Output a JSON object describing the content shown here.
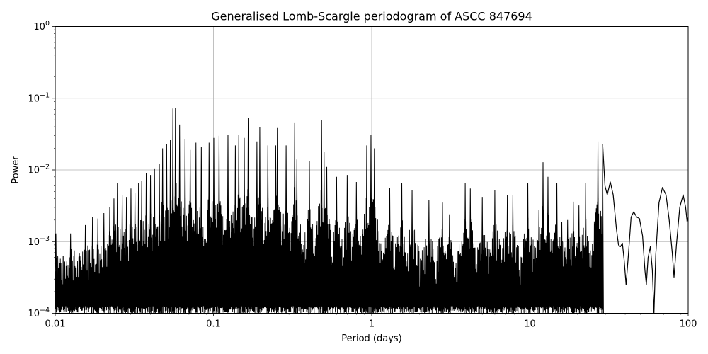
{
  "chart_data": {
    "type": "line",
    "title": "Generalised Lomb-Scargle periodogram of ASCC 847694",
    "xlabel": "Period (days)",
    "ylabel": "Power",
    "xscale": "log",
    "yscale": "log",
    "xlim": [
      0.01,
      100
    ],
    "ylim": [
      0.0001,
      1
    ],
    "grid": true,
    "x_ticks": [
      {
        "value": 0.01,
        "label": "0.01"
      },
      {
        "value": 0.1,
        "label": "0.1"
      },
      {
        "value": 1,
        "label": "1"
      },
      {
        "value": 10,
        "label": "10"
      },
      {
        "value": 100,
        "label": "100"
      }
    ],
    "y_ticks": [
      {
        "value": 0.0001,
        "base": "10",
        "exp": "−4"
      },
      {
        "value": 0.001,
        "base": "10",
        "exp": "−3"
      },
      {
        "value": 0.01,
        "base": "10",
        "exp": "−2"
      },
      {
        "value": 0.1,
        "base": "10",
        "exp": "−1"
      },
      {
        "value": 1,
        "base": "10",
        "exp": "0"
      }
    ],
    "series": [
      {
        "color": "#000000",
        "peaks": [
          [
            0.0101,
            0.0013
          ],
          [
            0.0125,
            0.0013
          ],
          [
            0.0155,
            0.0017
          ],
          [
            0.0172,
            0.0022
          ],
          [
            0.0186,
            0.0021
          ],
          [
            0.0203,
            0.0025
          ],
          [
            0.0221,
            0.003
          ],
          [
            0.0235,
            0.004
          ],
          [
            0.0247,
            0.0065
          ],
          [
            0.0265,
            0.0045
          ],
          [
            0.0282,
            0.0042
          ],
          [
            0.0301,
            0.0055
          ],
          [
            0.0319,
            0.0048
          ],
          [
            0.0336,
            0.0065
          ],
          [
            0.0352,
            0.007
          ],
          [
            0.0376,
            0.009
          ],
          [
            0.04,
            0.0085
          ],
          [
            0.0424,
            0.0105
          ],
          [
            0.0455,
            0.012
          ],
          [
            0.0477,
            0.02
          ],
          [
            0.0506,
            0.023
          ],
          [
            0.0534,
            0.026
          ],
          [
            0.0554,
            0.072
          ],
          [
            0.0575,
            0.074
          ],
          [
            0.0611,
            0.043
          ],
          [
            0.0661,
            0.027
          ],
          [
            0.0713,
            0.019
          ],
          [
            0.0775,
            0.024
          ],
          [
            0.0838,
            0.021
          ],
          [
            0.0938,
            0.024
          ],
          [
            0.1005,
            0.028
          ],
          [
            0.1085,
            0.03
          ],
          [
            0.1235,
            0.031
          ],
          [
            0.1375,
            0.022
          ],
          [
            0.1445,
            0.031
          ],
          [
            0.1565,
            0.028
          ],
          [
            0.1658,
            0.053
          ],
          [
            0.1882,
            0.025
          ],
          [
            0.1962,
            0.04
          ],
          [
            0.2206,
            0.022
          ],
          [
            0.2474,
            0.022
          ],
          [
            0.2533,
            0.0385
          ],
          [
            0.2878,
            0.022
          ],
          [
            0.326,
            0.045
          ],
          [
            0.3365,
            0.014
          ],
          [
            0.4038,
            0.0133
          ],
          [
            0.4822,
            0.05
          ],
          [
            0.5,
            0.018
          ],
          [
            0.52,
            0.011
          ],
          [
            0.6,
            0.008
          ],
          [
            0.7,
            0.0085
          ],
          [
            0.8,
            0.0068
          ],
          [
            0.93,
            0.022
          ],
          [
            0.98,
            0.031
          ],
          [
            1.0,
            0.031
          ],
          [
            1.04,
            0.02
          ],
          [
            1.3,
            0.0056
          ],
          [
            1.55,
            0.0065
          ],
          [
            1.8,
            0.0052
          ],
          [
            2.3,
            0.0038
          ],
          [
            2.8,
            0.0035
          ],
          [
            3.1,
            0.0024
          ],
          [
            3.9,
            0.0065
          ],
          [
            4.2,
            0.0055
          ],
          [
            5.0,
            0.0042
          ],
          [
            6.0,
            0.0052
          ],
          [
            7.2,
            0.0045
          ],
          [
            7.8,
            0.0045
          ],
          [
            9.7,
            0.0065
          ],
          [
            11.4,
            0.0028
          ],
          [
            12.1,
            0.0128
          ],
          [
            13.0,
            0.008
          ],
          [
            14.8,
            0.0066
          ],
          [
            15.9,
            0.0019
          ],
          [
            17.3,
            0.002
          ],
          [
            18.8,
            0.0036
          ],
          [
            20.4,
            0.0032
          ],
          [
            22.5,
            0.0065
          ],
          [
            26.9,
            0.025
          ],
          [
            28.8,
            0.023
          ]
        ],
        "tail": [
          [
            29.8,
            0.006
          ],
          [
            30.8,
            0.0045
          ],
          [
            32.2,
            0.0068
          ],
          [
            33.6,
            0.0045
          ],
          [
            35.2,
            0.0015
          ],
          [
            36.3,
            0.0009
          ],
          [
            37.3,
            0.00085
          ],
          [
            38.4,
            0.00095
          ],
          [
            39.4,
            0.00055
          ],
          [
            40.5,
            0.00025
          ],
          [
            41.8,
            0.0006
          ],
          [
            43.6,
            0.0022
          ],
          [
            45.3,
            0.0026
          ],
          [
            47.3,
            0.0022
          ],
          [
            49.2,
            0.0021
          ],
          [
            51.5,
            0.0012
          ],
          [
            53.3,
            0.0004
          ],
          [
            54.4,
            0.00025
          ],
          [
            55.8,
            0.0006
          ],
          [
            57.7,
            0.00085
          ],
          [
            59.4,
            0.0004
          ],
          [
            60.8,
            0.0001
          ],
          [
            62.4,
            0.00065
          ],
          [
            65.4,
            0.0035
          ],
          [
            68.8,
            0.0057
          ],
          [
            72.4,
            0.0045
          ],
          [
            75.9,
            0.002
          ],
          [
            79.3,
            0.0007
          ],
          [
            81.4,
            0.00032
          ],
          [
            84.3,
            0.0009
          ],
          [
            88.5,
            0.003
          ],
          [
            92.9,
            0.0045
          ],
          [
            96.4,
            0.003
          ],
          [
            98.5,
            0.0019
          ],
          [
            100,
            0.0022
          ]
        ]
      }
    ]
  }
}
